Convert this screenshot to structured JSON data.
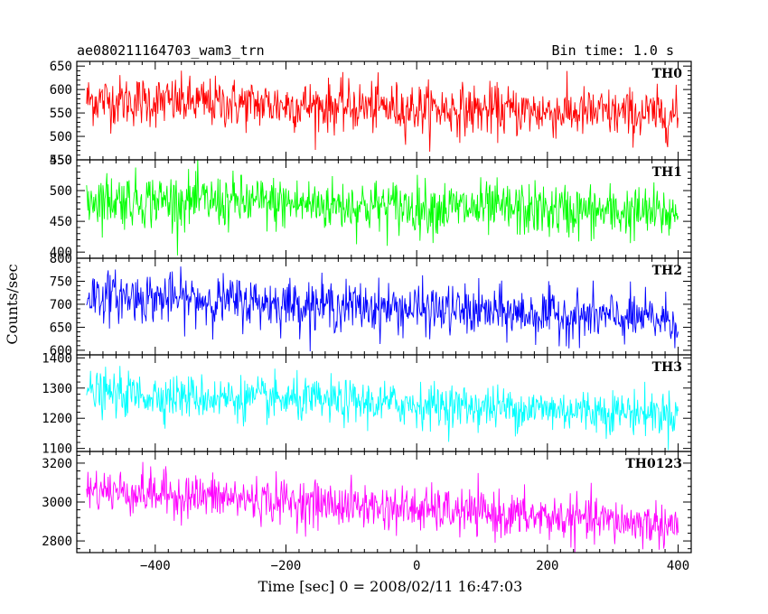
{
  "chart_data": {
    "type": "line",
    "title": "ae080211164703_wam3_trn",
    "bin_time_label": "Bin time: 1.0 s",
    "xlabel": "Time [sec] 0 = 2008/02/11 16:47:03",
    "ylabel": "Counts/sec",
    "xlim": [
      -520,
      420
    ],
    "x_ticks": [
      -400,
      -200,
      0,
      200,
      400
    ],
    "x_tick_labels": [
      "−400",
      "−200",
      "0",
      "200",
      "400"
    ],
    "x_range": [
      -505,
      400
    ],
    "grid": false,
    "panels": [
      {
        "label": "TH0",
        "color": "#ff0000",
        "ylim": [
          450,
          660
        ],
        "y_ticks": [
          450,
          500,
          550,
          600,
          650
        ],
        "y_tick_labels": [
          "450",
          "500",
          "550",
          "600",
          "650"
        ],
        "trend_start": 578,
        "trend_end": 545,
        "noise_sd": 27,
        "x_start": -505,
        "x_end": 400
      },
      {
        "label": "TH1",
        "color": "#00ff00",
        "ylim": [
          390,
          550
        ],
        "y_ticks": [
          400,
          450,
          500,
          550
        ],
        "y_tick_labels": [
          "400",
          "450",
          "500",
          "550"
        ],
        "trend_start": 487,
        "trend_end": 462,
        "noise_sd": 22,
        "x_start": -505,
        "x_end": 400
      },
      {
        "label": "TH2",
        "color": "#0000ff",
        "ylim": [
          590,
          800
        ],
        "y_ticks": [
          600,
          650,
          700,
          750,
          800
        ],
        "y_tick_labels": [
          "600",
          "650",
          "700",
          "750",
          "800"
        ],
        "trend_start": 720,
        "trend_end": 665,
        "noise_sd": 27,
        "x_start": -505,
        "x_end": 400
      },
      {
        "label": "TH3",
        "color": "#00ffff",
        "ylim": [
          1090,
          1410
        ],
        "y_ticks": [
          1100,
          1200,
          1300,
          1400
        ],
        "y_tick_labels": [
          "1100",
          "1200",
          "1300",
          "1400"
        ],
        "trend_start": 1283,
        "trend_end": 1215,
        "noise_sd": 36,
        "x_start": -505,
        "x_end": 400
      },
      {
        "label": "TH0123",
        "color": "#ff00ff",
        "ylim": [
          2740,
          3260
        ],
        "y_ticks": [
          2800,
          3000,
          3200
        ],
        "y_tick_labels": [
          "2800",
          "3000",
          "3200"
        ],
        "trend_start": 3065,
        "trend_end": 2880,
        "noise_sd": 58,
        "x_start": -505,
        "x_end": 400
      }
    ]
  }
}
